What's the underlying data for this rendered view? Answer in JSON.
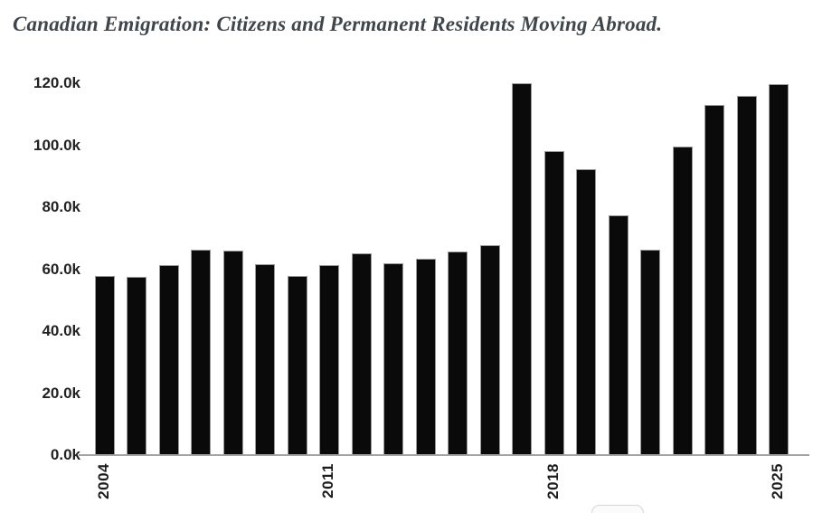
{
  "header": {
    "title": "Canadian Emigration: Citizens and Permanent Residents Moving Abroad."
  },
  "chart_data": {
    "type": "bar",
    "title": "Canadian Emigration: Citizens and Permanent Residents Moving Abroad.",
    "categories": [
      "2004",
      "2005",
      "2006",
      "2007",
      "2008",
      "2009",
      "2010",
      "2011",
      "2012",
      "2013",
      "2014",
      "2015",
      "2016",
      "2017",
      "2018",
      "2019",
      "2020",
      "2021",
      "2022",
      "2023",
      "2024",
      "2025"
    ],
    "values": [
      57.8,
      57.4,
      61.2,
      66.3,
      65.9,
      61.5,
      57.8,
      61.2,
      65.0,
      62.0,
      63.5,
      65.6,
      67.6,
      119.9,
      98.2,
      92.2,
      77.3,
      66.4,
      99.7,
      113.0,
      116.0,
      119.8
    ],
    "value_unit": "thousands",
    "xlabel": "",
    "ylabel": "",
    "ylim": [
      0,
      120
    ],
    "ytick_values": [
      0,
      20,
      40,
      60,
      80,
      100,
      120
    ],
    "ytick_labels": [
      "0.0k",
      "20.0k",
      "40.0k",
      "60.0k",
      "80.0k",
      "100.0k",
      "120.0k"
    ],
    "xtick_labels_visible": [
      "2004",
      "2011",
      "2018",
      "2025"
    ],
    "grid": "off",
    "legend": "none",
    "bar_color": "#0a0a0a",
    "bar_stroke_color": "#9a9a9a",
    "axis_line_color": "#a3a3a3",
    "title_color": "#3e454b",
    "tick_label_color": "#222222",
    "background_color": "#ffffff"
  }
}
